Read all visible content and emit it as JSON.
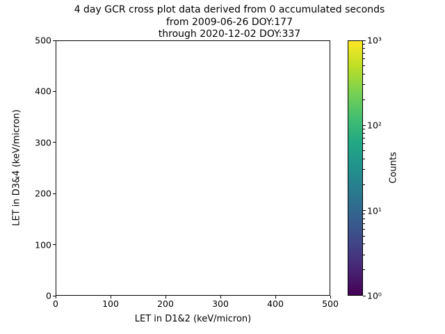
{
  "title": {
    "line1": "4 day GCR cross plot data derived from 0 accumulated seconds",
    "line2": "from 2009-06-26 DOY:177",
    "line3": "through 2020-12-02 DOY:337"
  },
  "chart_data": {
    "type": "heatmap",
    "title": "4 day GCR cross plot data derived from 0 accumulated seconds\nfrom 2009-06-26 DOY:177\nthrough 2020-12-02 DOY:337",
    "xlabel": "LET in D1&2 (keV/micron)",
    "ylabel": "LET in D3&4 (keV/micron)",
    "xlim": [
      0,
      500
    ],
    "ylim": [
      0,
      500
    ],
    "x_ticks": [
      "0",
      "100",
      "200",
      "300",
      "400",
      "500"
    ],
    "y_ticks": [
      "0",
      "100",
      "200",
      "300",
      "400",
      "500"
    ],
    "grid": false,
    "points": [],
    "colorbar": {
      "label": "Counts",
      "scale": "log",
      "min": 1,
      "max": 1000,
      "tick_labels": [
        "10⁰",
        "10¹",
        "10²",
        "10³"
      ],
      "colormap": "viridis",
      "colormap_stops": [
        "#440154",
        "#482475",
        "#414487",
        "#355f8d",
        "#2a788e",
        "#21918c",
        "#22a884",
        "#44bf70",
        "#7ad151",
        "#bddf26",
        "#fde725"
      ]
    }
  }
}
